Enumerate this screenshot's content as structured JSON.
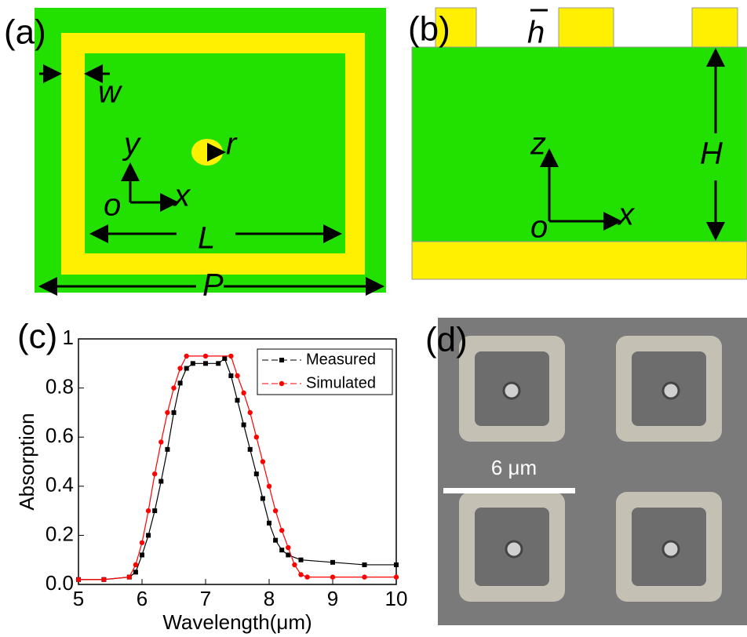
{
  "panel_a": {
    "label": "(a)",
    "w": "w",
    "r": "r",
    "y": "y",
    "o": "o",
    "x": "x",
    "L": "L",
    "P": "P"
  },
  "panel_b": {
    "label": "(b)",
    "h": "h",
    "z": "z",
    "o": "o",
    "x": "x",
    "H": "H"
  },
  "panel_d": {
    "label": "(d)",
    "scale": "6 μm"
  },
  "chart_data": {
    "type": "line",
    "label": "(c)",
    "x_label": "Wavelength(μm)",
    "y_label": "Absorption",
    "xlim": [
      5,
      10
    ],
    "ylim": [
      0,
      1
    ],
    "xticks": [
      5,
      6,
      7,
      8,
      9,
      10
    ],
    "yticks": [
      {
        "value": 0,
        "label": "0.0"
      },
      0.2,
      0.4,
      0.6,
      0.8,
      1
    ],
    "legend": "upper right",
    "series": [
      {
        "name": "Measured",
        "color": "#000000",
        "x": [
          5,
          5.4,
          5.8,
          5.9,
          6.0,
          6.1,
          6.2,
          6.3,
          6.4,
          6.5,
          6.6,
          6.7,
          6.8,
          7.0,
          7.2,
          7.3,
          7.4,
          7.5,
          7.6,
          7.7,
          7.8,
          7.9,
          8.0,
          8.1,
          8.2,
          8.3,
          8.5,
          9.0,
          9.5,
          10
        ],
        "values": [
          0.02,
          0.02,
          0.03,
          0.05,
          0.12,
          0.2,
          0.3,
          0.42,
          0.55,
          0.7,
          0.82,
          0.88,
          0.9,
          0.9,
          0.9,
          0.92,
          0.85,
          0.75,
          0.65,
          0.55,
          0.45,
          0.35,
          0.25,
          0.18,
          0.14,
          0.12,
          0.1,
          0.09,
          0.08,
          0.08
        ]
      },
      {
        "name": "Simulated",
        "color": "#ff0000",
        "x": [
          5,
          5.4,
          5.8,
          5.9,
          6.0,
          6.1,
          6.2,
          6.3,
          6.4,
          6.5,
          6.6,
          6.7,
          7.0,
          7.4,
          7.5,
          7.6,
          7.7,
          7.8,
          7.9,
          8.0,
          8.1,
          8.2,
          8.3,
          8.4,
          8.5,
          8.6,
          9.0,
          9.5,
          10
        ],
        "values": [
          0.02,
          0.02,
          0.03,
          0.08,
          0.17,
          0.3,
          0.45,
          0.58,
          0.7,
          0.8,
          0.88,
          0.93,
          0.93,
          0.93,
          0.85,
          0.78,
          0.7,
          0.6,
          0.5,
          0.4,
          0.3,
          0.22,
          0.15,
          0.08,
          0.04,
          0.03,
          0.03,
          0.03,
          0.03
        ]
      }
    ]
  }
}
